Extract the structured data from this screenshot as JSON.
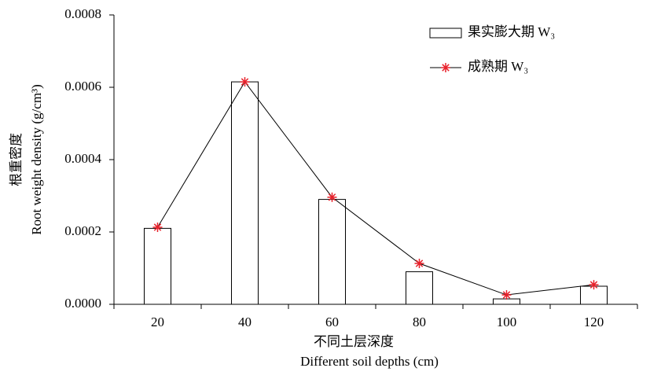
{
  "chart_data": {
    "type": "bar",
    "categories": [
      "20",
      "40",
      "60",
      "80",
      "100",
      "120"
    ],
    "series": [
      {
        "name": "果实膨大期 W₃",
        "type": "bar",
        "color": "#ffffff",
        "values": [
          0.00021,
          0.000615,
          0.00029,
          9e-05,
          1.5e-05,
          5e-05
        ]
      },
      {
        "name": "成熟期 W₃",
        "type": "line",
        "color": "#e8202a",
        "values": [
          0.000213,
          0.000615,
          0.000296,
          0.000113,
          2.6e-05,
          5.4e-05
        ]
      }
    ],
    "ylim": [
      0,
      0.0008
    ],
    "yticks": [
      {
        "value": 0,
        "label": "0.0000"
      },
      {
        "value": 0.0002,
        "label": "0.0002"
      },
      {
        "value": 0.0004,
        "label": "0.0004"
      },
      {
        "value": 0.0006,
        "label": "0.0006"
      },
      {
        "value": 0.0008,
        "label": "0.0008"
      }
    ],
    "y_label": [
      "根重密度",
      "Root weight density (g/cm³)"
    ],
    "x_label": [
      "不同土层深度",
      "Different soil depths (cm)"
    ],
    "legend": "top-right",
    "grid": false
  }
}
